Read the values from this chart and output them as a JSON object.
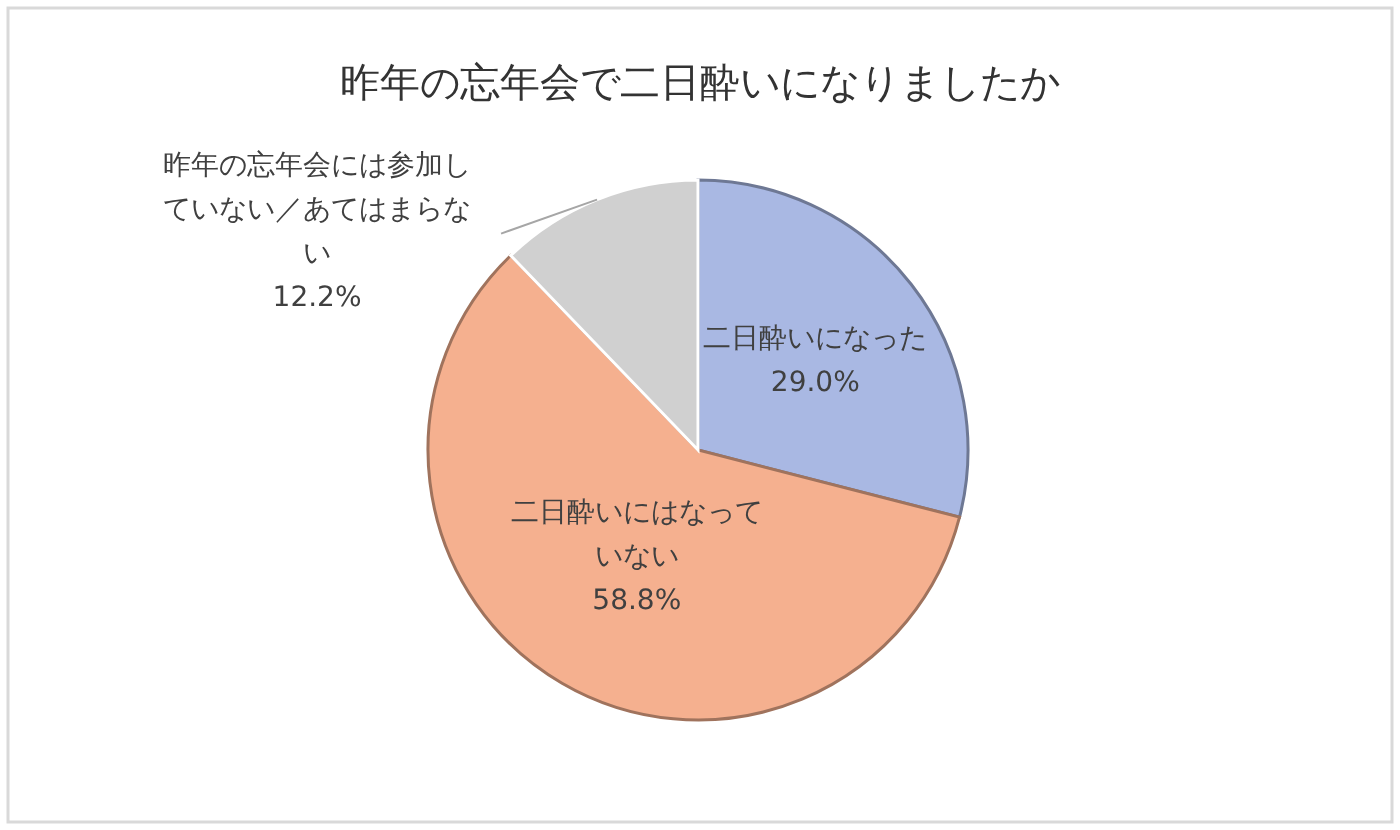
{
  "chart_data": {
    "type": "pie",
    "title": "昨年の忘年会で二日酔いになりましたか",
    "categories": [
      "二日酔いになった",
      "二日酔いにはなっていない",
      "昨年の忘年会には参加していない／あてはまらない"
    ],
    "values": [
      29.0,
      58.8,
      12.2
    ],
    "value_labels": [
      "29.0%",
      "58.8%",
      "12.2%"
    ],
    "colors": [
      "#a9b8e3",
      "#f5b08f",
      "#d0d0d0"
    ]
  }
}
